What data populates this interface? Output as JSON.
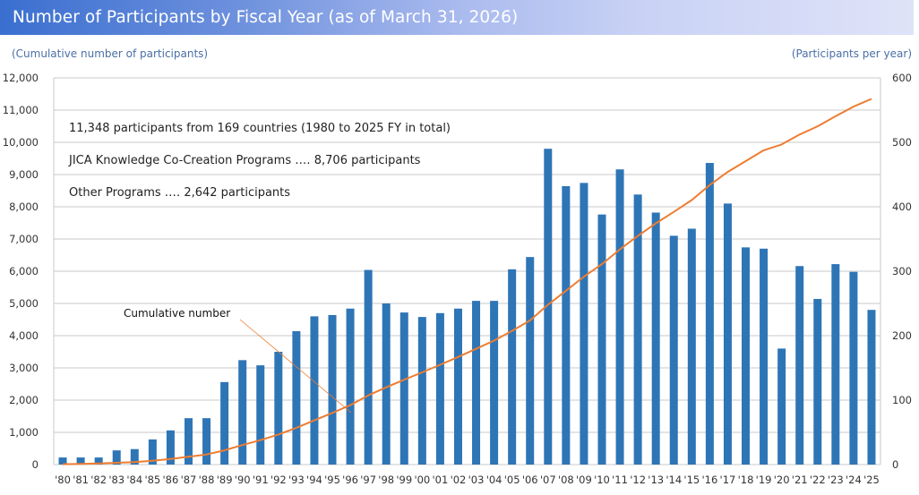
{
  "header": {
    "title": "Number of Participants by Fiscal Year (as of March 31, 2026)"
  },
  "colors": {
    "bar": "#2e75b6",
    "line": "#ed7d31",
    "grid": "#c8c8c8",
    "title_gradient_start": "#3a6fd0",
    "axis_caption": "#4a6fa5"
  },
  "chart_data": {
    "type": "bar+line",
    "title": "Number of Participants by Fiscal Year (as of March 31, 2026)",
    "ylabel_left": "(Cumulative number of participants)",
    "ylabel_right": "(Participants per year)",
    "ylim_left": [
      0,
      12000
    ],
    "ylim_right": [
      0,
      600
    ],
    "yticks_left": [
      "0",
      "1,000",
      "2,000",
      "3,000",
      "4,000",
      "5,000",
      "6,000",
      "7,000",
      "8,000",
      "9,000",
      "10,000",
      "11,000",
      "12,000"
    ],
    "yticks_right": [
      "0",
      "100",
      "200",
      "300",
      "400",
      "500",
      "600"
    ],
    "grid": true,
    "categories": [
      "'80",
      "'81",
      "'82",
      "'83",
      "'84",
      "'85",
      "'86",
      "'87",
      "'88",
      "'89",
      "'90",
      "'91",
      "'92",
      "'93",
      "'94",
      "'95",
      "'96",
      "'97",
      "'98",
      "'99",
      "'00",
      "'01",
      "'02",
      "'03",
      "'04",
      "'05",
      "'06",
      "'07",
      "'08",
      "'09",
      "'10",
      "'11",
      "'12",
      "'13",
      "'14",
      "'15",
      "'16",
      "'17",
      "'18",
      "'19",
      "'20",
      "'21",
      "'22",
      "'23",
      "'24",
      "'25"
    ],
    "series": [
      {
        "name": "Participants per year",
        "type": "bar",
        "axis": "right",
        "values": [
          11,
          11,
          11,
          22,
          24,
          39,
          53,
          72,
          72,
          128,
          162,
          154,
          175,
          207,
          230,
          232,
          242,
          302,
          250,
          236,
          229,
          235,
          242,
          254,
          254,
          303,
          322,
          490,
          432,
          437,
          388,
          458,
          419,
          391,
          355,
          366,
          468,
          405,
          337,
          335,
          180,
          308,
          257,
          311,
          299,
          240
        ]
      },
      {
        "name": "Cumulative number",
        "type": "line",
        "axis": "left",
        "values": [
          11,
          22,
          33,
          55,
          79,
          118,
          171,
          243,
          315,
          443,
          605,
          759,
          934,
          1141,
          1371,
          1603,
          1845,
          2147,
          2397,
          2633,
          2862,
          3097,
          3339,
          3593,
          3847,
          4150,
          4472,
          4962,
          5394,
          5831,
          6219,
          6677,
          7096,
          7487,
          7842,
          8208,
          8676,
          9081,
          9418,
          9753,
          9933,
          10241,
          10498,
          10809,
          11108,
          11348
        ]
      }
    ],
    "annotations": [
      "11,348 participants from 169 countries (1980 to 2025 FY in total)",
      "JICA Knowledge Co-Creation Programs ․․․․ 8,706 participants",
      "Other Programs ․․․․ 2,642 participants",
      "Cumulative number"
    ],
    "legend": "top-left"
  }
}
